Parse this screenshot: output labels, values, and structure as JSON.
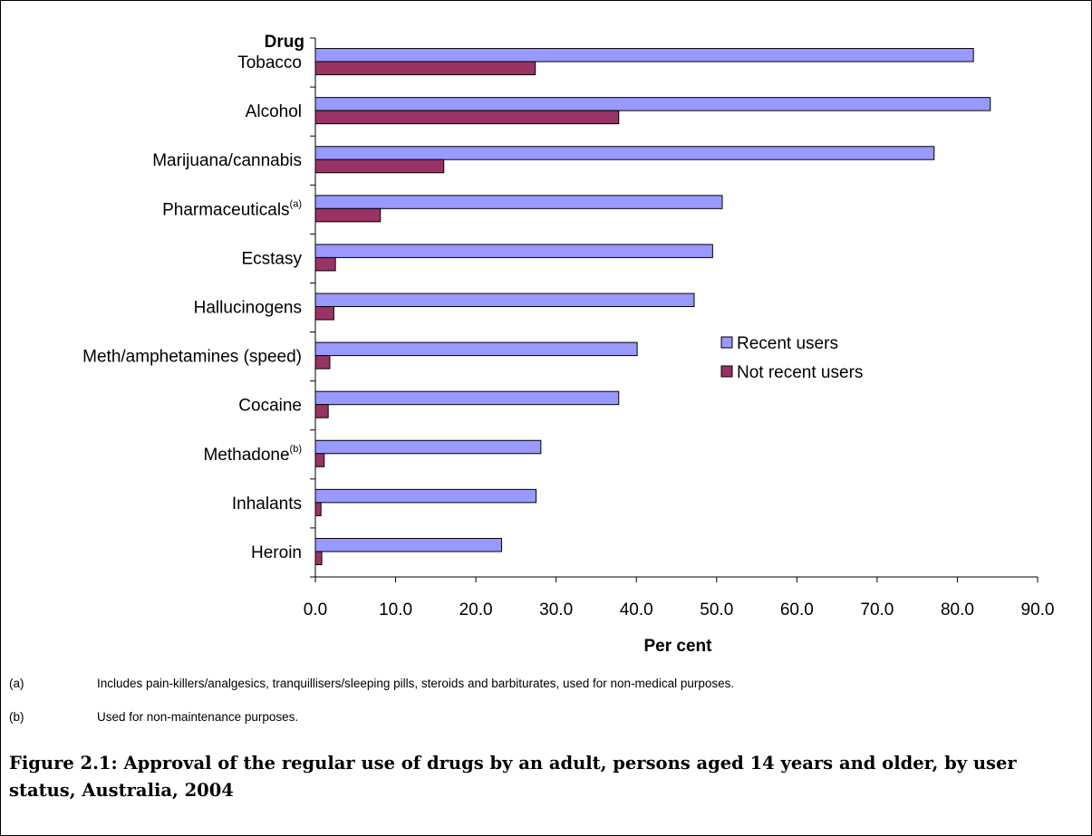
{
  "chart_data": {
    "type": "bar",
    "orientation": "horizontal",
    "category_axis_title": "Drug",
    "xlabel": "Per cent",
    "xlim": [
      0,
      90
    ],
    "xticks": [
      "0.0",
      "10.0",
      "20.0",
      "30.0",
      "40.0",
      "50.0",
      "60.0",
      "70.0",
      "80.0",
      "90.0"
    ],
    "categories": [
      {
        "label": "Tobacco",
        "sup": ""
      },
      {
        "label": "Alcohol",
        "sup": ""
      },
      {
        "label": "Marijuana/cannabis",
        "sup": ""
      },
      {
        "label": "Pharmaceuticals",
        "sup": "(a)"
      },
      {
        "label": "Ecstasy",
        "sup": ""
      },
      {
        "label": "Hallucinogens",
        "sup": ""
      },
      {
        "label": "Meth/amphetamines (speed)",
        "sup": ""
      },
      {
        "label": "Cocaine",
        "sup": ""
      },
      {
        "label": "Methadone",
        "sup": "(b)"
      },
      {
        "label": "Inhalants",
        "sup": ""
      },
      {
        "label": "Heroin",
        "sup": ""
      }
    ],
    "series": [
      {
        "name": "Recent users",
        "color": "#9999ff",
        "values": [
          82.0,
          84.1,
          77.1,
          50.7,
          49.5,
          47.2,
          40.1,
          37.8,
          28.1,
          27.5,
          23.2
        ]
      },
      {
        "name": "Not recent users",
        "color": "#993366",
        "values": [
          27.4,
          37.8,
          16.0,
          8.1,
          2.5,
          2.3,
          1.8,
          1.6,
          1.1,
          0.7,
          0.8
        ]
      }
    ],
    "legend_position": "right-middle",
    "grid": false
  },
  "notes": [
    {
      "label": "(a)",
      "text": "Includes pain-killers/analgesics, tranquillisers/sleeping pills, steroids and barbiturates, used for non-medical purposes."
    },
    {
      "label": "(b)",
      "text": "Used for non-maintenance purposes."
    }
  ],
  "caption": "Figure 2.1: Approval of the regular use of drugs by an adult, persons aged 14 years and older, by user status, Australia, 2004"
}
